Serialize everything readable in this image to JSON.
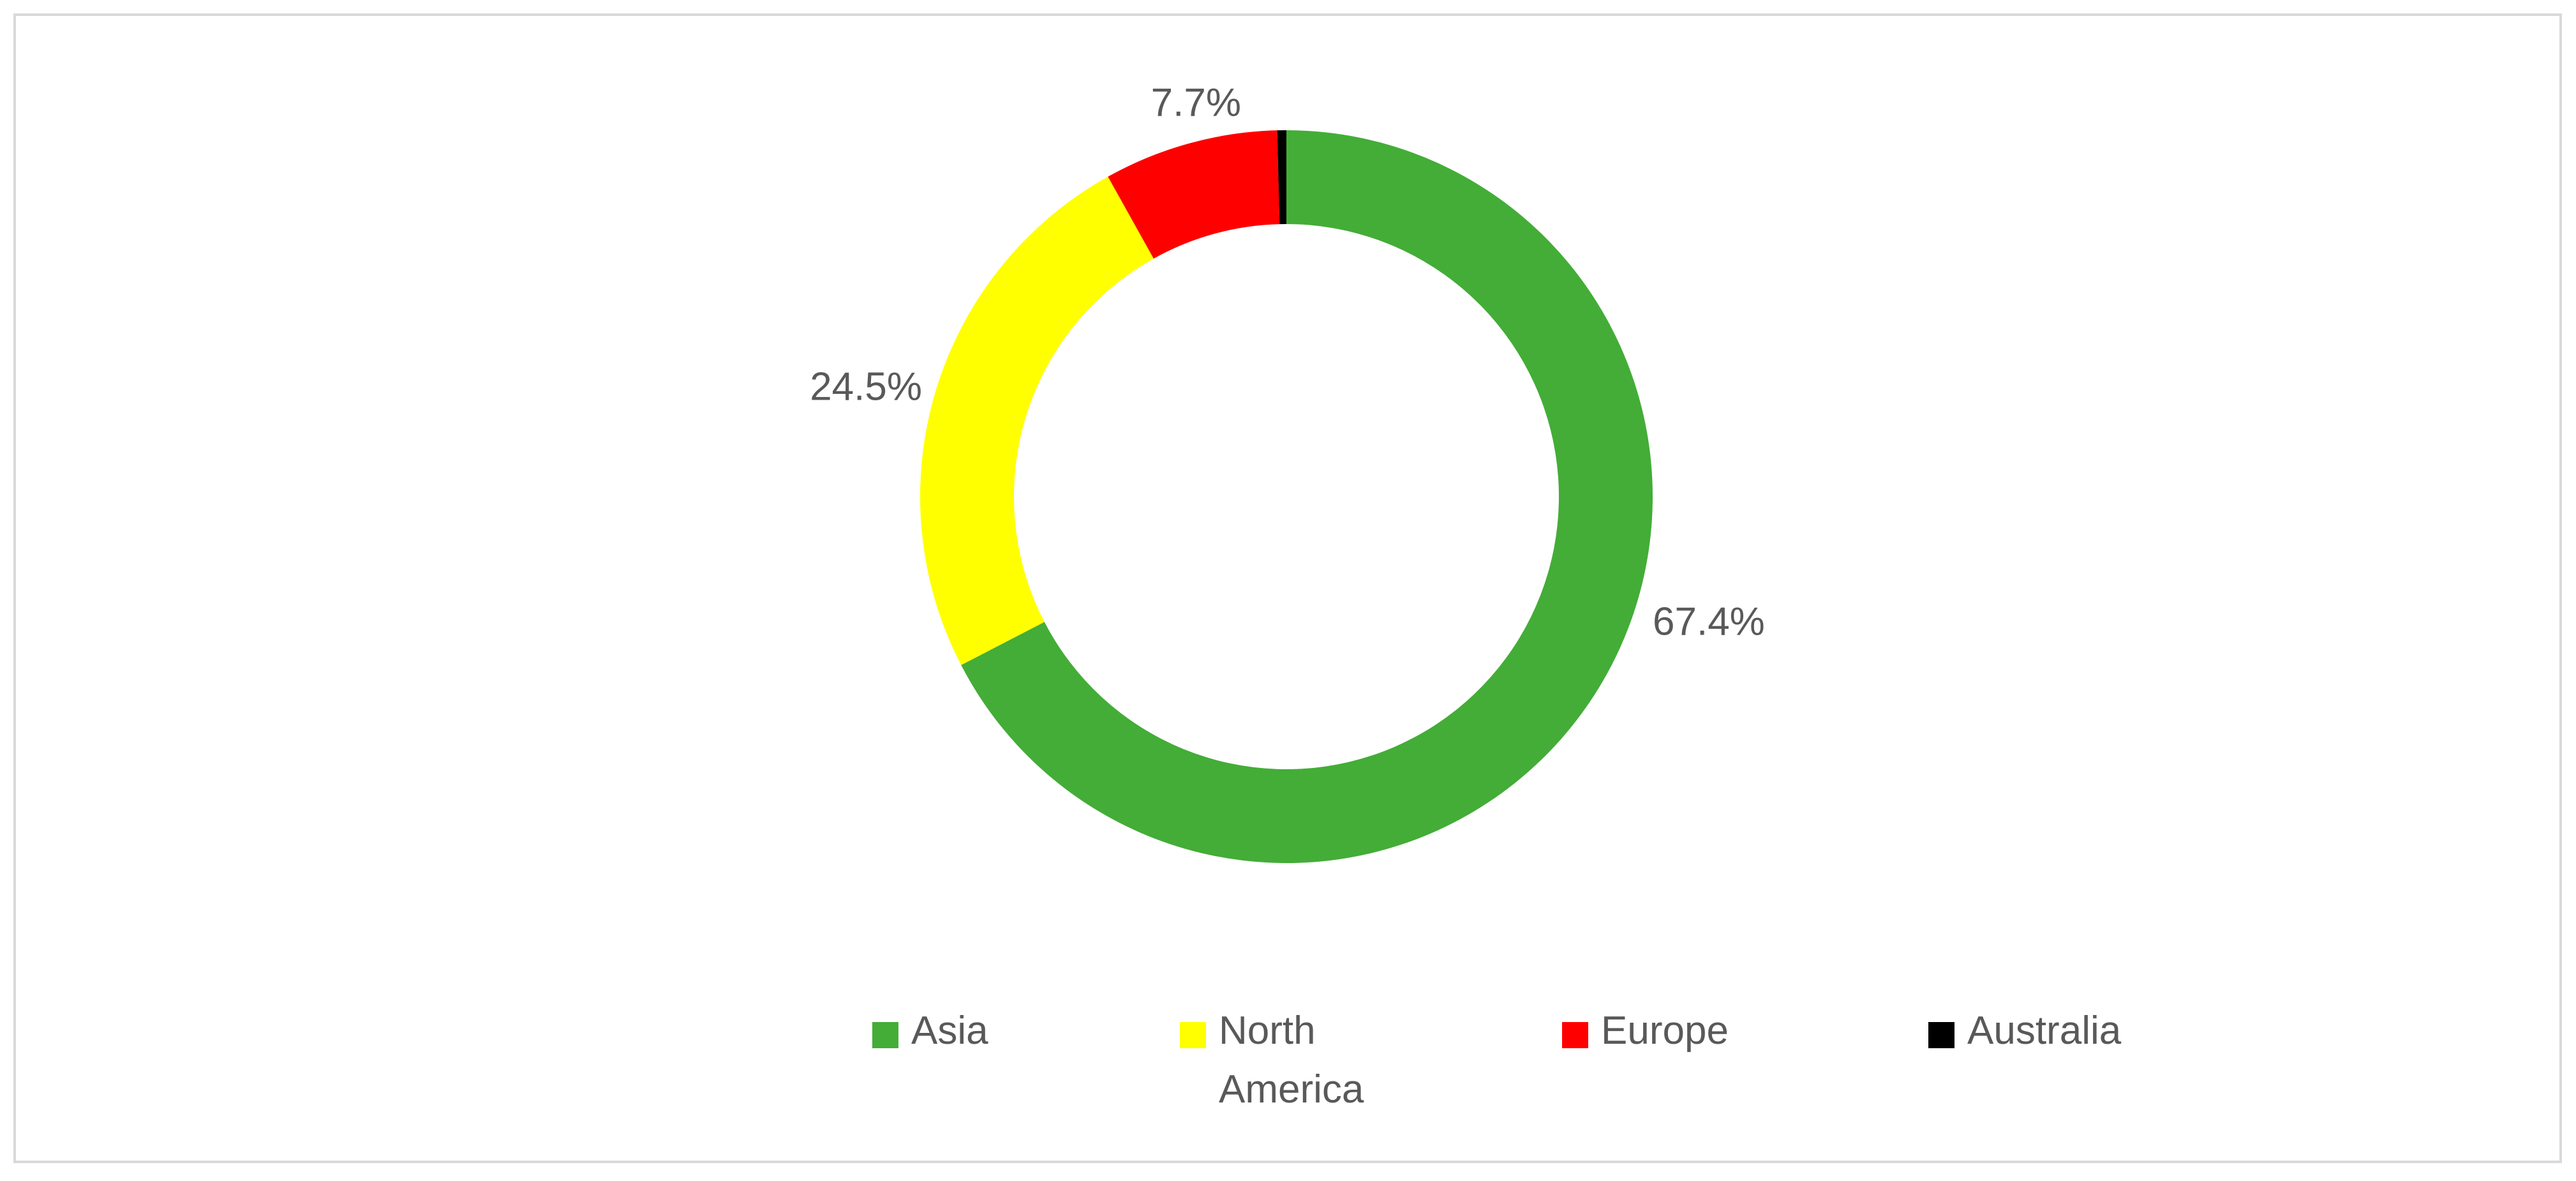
{
  "chart_data": {
    "type": "donut",
    "categories": [
      "Asia",
      "North America",
      "Europe",
      "Australia"
    ],
    "values": [
      67.4,
      24.5,
      7.7,
      0.4
    ],
    "value_labels": [
      "67.4%",
      "24.5%",
      "7.7%",
      null
    ],
    "colors": [
      "#43ad37",
      "#ffff00",
      "#ff0000",
      "#000000"
    ],
    "legend": "bottom"
  }
}
